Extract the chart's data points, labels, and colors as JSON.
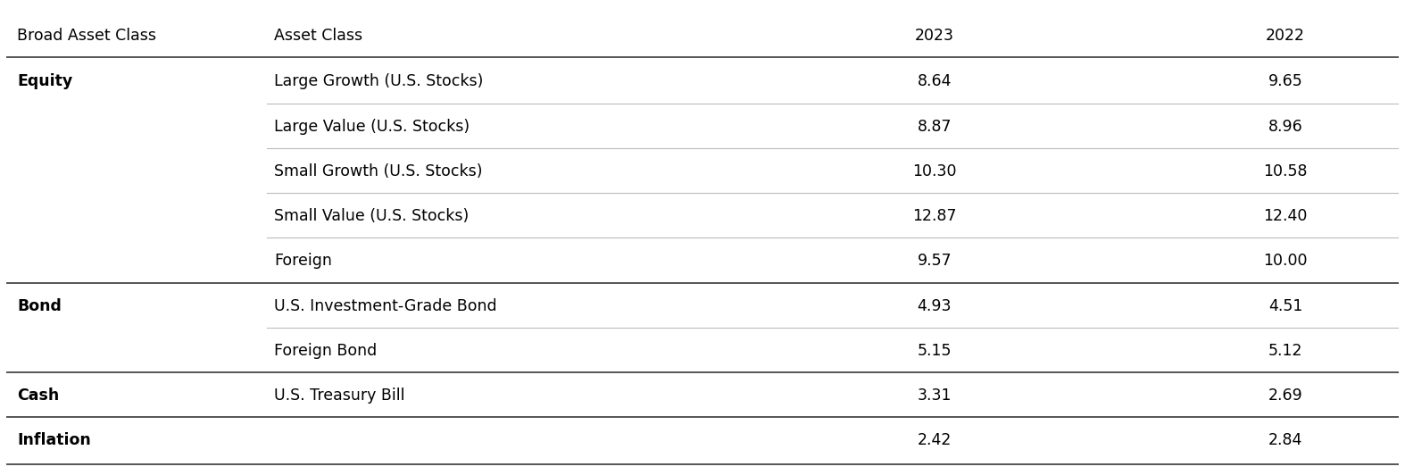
{
  "header": [
    "Broad Asset Class",
    "Asset Class",
    "2023",
    "2022"
  ],
  "rows": [
    {
      "broad": "Equity",
      "broad_bold": true,
      "asset": "Large Growth (U.S. Stocks)",
      "val2023": "8.64",
      "val2022": "9.65",
      "thick_top": false,
      "thin_top": false
    },
    {
      "broad": "",
      "broad_bold": false,
      "asset": "Large Value (U.S. Stocks)",
      "val2023": "8.87",
      "val2022": "8.96",
      "thick_top": false,
      "thin_top": true
    },
    {
      "broad": "",
      "broad_bold": false,
      "asset": "Small Growth (U.S. Stocks)",
      "val2023": "10.30",
      "val2022": "10.58",
      "thick_top": false,
      "thin_top": true
    },
    {
      "broad": "",
      "broad_bold": false,
      "asset": "Small Value (U.S. Stocks)",
      "val2023": "12.87",
      "val2022": "12.40",
      "thick_top": false,
      "thin_top": true
    },
    {
      "broad": "",
      "broad_bold": false,
      "asset": "Foreign",
      "val2023": "9.57",
      "val2022": "10.00",
      "thick_top": false,
      "thin_top": true
    },
    {
      "broad": "Bond",
      "broad_bold": true,
      "asset": "U.S. Investment-Grade Bond",
      "val2023": "4.93",
      "val2022": "4.51",
      "thick_top": true,
      "thin_top": false
    },
    {
      "broad": "",
      "broad_bold": false,
      "asset": "Foreign Bond",
      "val2023": "5.15",
      "val2022": "5.12",
      "thick_top": false,
      "thin_top": true
    },
    {
      "broad": "Cash",
      "broad_bold": true,
      "asset": "U.S. Treasury Bill",
      "val2023": "3.31",
      "val2022": "2.69",
      "thick_top": true,
      "thin_top": false
    },
    {
      "broad": "Inflation",
      "broad_bold": true,
      "asset": "",
      "val2023": "2.42",
      "val2022": "2.84",
      "thick_top": true,
      "thin_top": false
    }
  ],
  "col_x_norm": {
    "broad": 0.012,
    "asset": 0.195,
    "val2023": 0.665,
    "val2022": 0.915
  },
  "thick_line_color": "#555555",
  "thin_line_color": "#bbbbbb",
  "bg_color": "#ffffff",
  "header_fontsize": 12.5,
  "body_fontsize": 12.5,
  "body_text_color": "#000000"
}
